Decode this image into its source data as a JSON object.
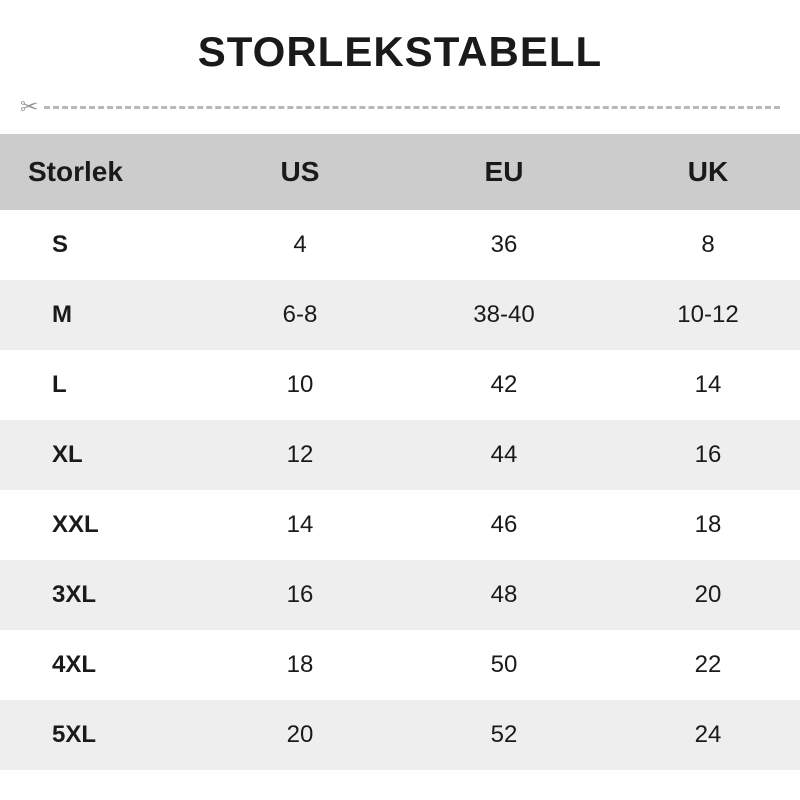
{
  "title": "STORLEKSTABELL",
  "scissors_glyph": "✂",
  "table": {
    "type": "table",
    "header_bg": "#cccccc",
    "row_alt_bg": "#eeeeee",
    "row_bg": "#ffffff",
    "text_color": "#1a1a1a",
    "header_fontsize": 28,
    "cell_fontsize": 24,
    "title_fontsize": 42,
    "column_widths_pct": [
      26,
      23,
      28,
      23
    ],
    "columns": [
      "Storlek",
      "US",
      "EU",
      "UK"
    ],
    "rows": [
      [
        "S",
        "4",
        "36",
        "8"
      ],
      [
        "M",
        "6-8",
        "38-40",
        "10-12"
      ],
      [
        "L",
        "10",
        "42",
        "14"
      ],
      [
        "XL",
        "12",
        "44",
        "16"
      ],
      [
        "XXL",
        "14",
        "46",
        "18"
      ],
      [
        "3XL",
        "16",
        "48",
        "20"
      ],
      [
        "4XL",
        "18",
        "50",
        "22"
      ],
      [
        "5XL",
        "20",
        "52",
        "24"
      ]
    ]
  },
  "divider": {
    "color": "#b8b8b8",
    "scissors_color": "#9a9a9a"
  }
}
